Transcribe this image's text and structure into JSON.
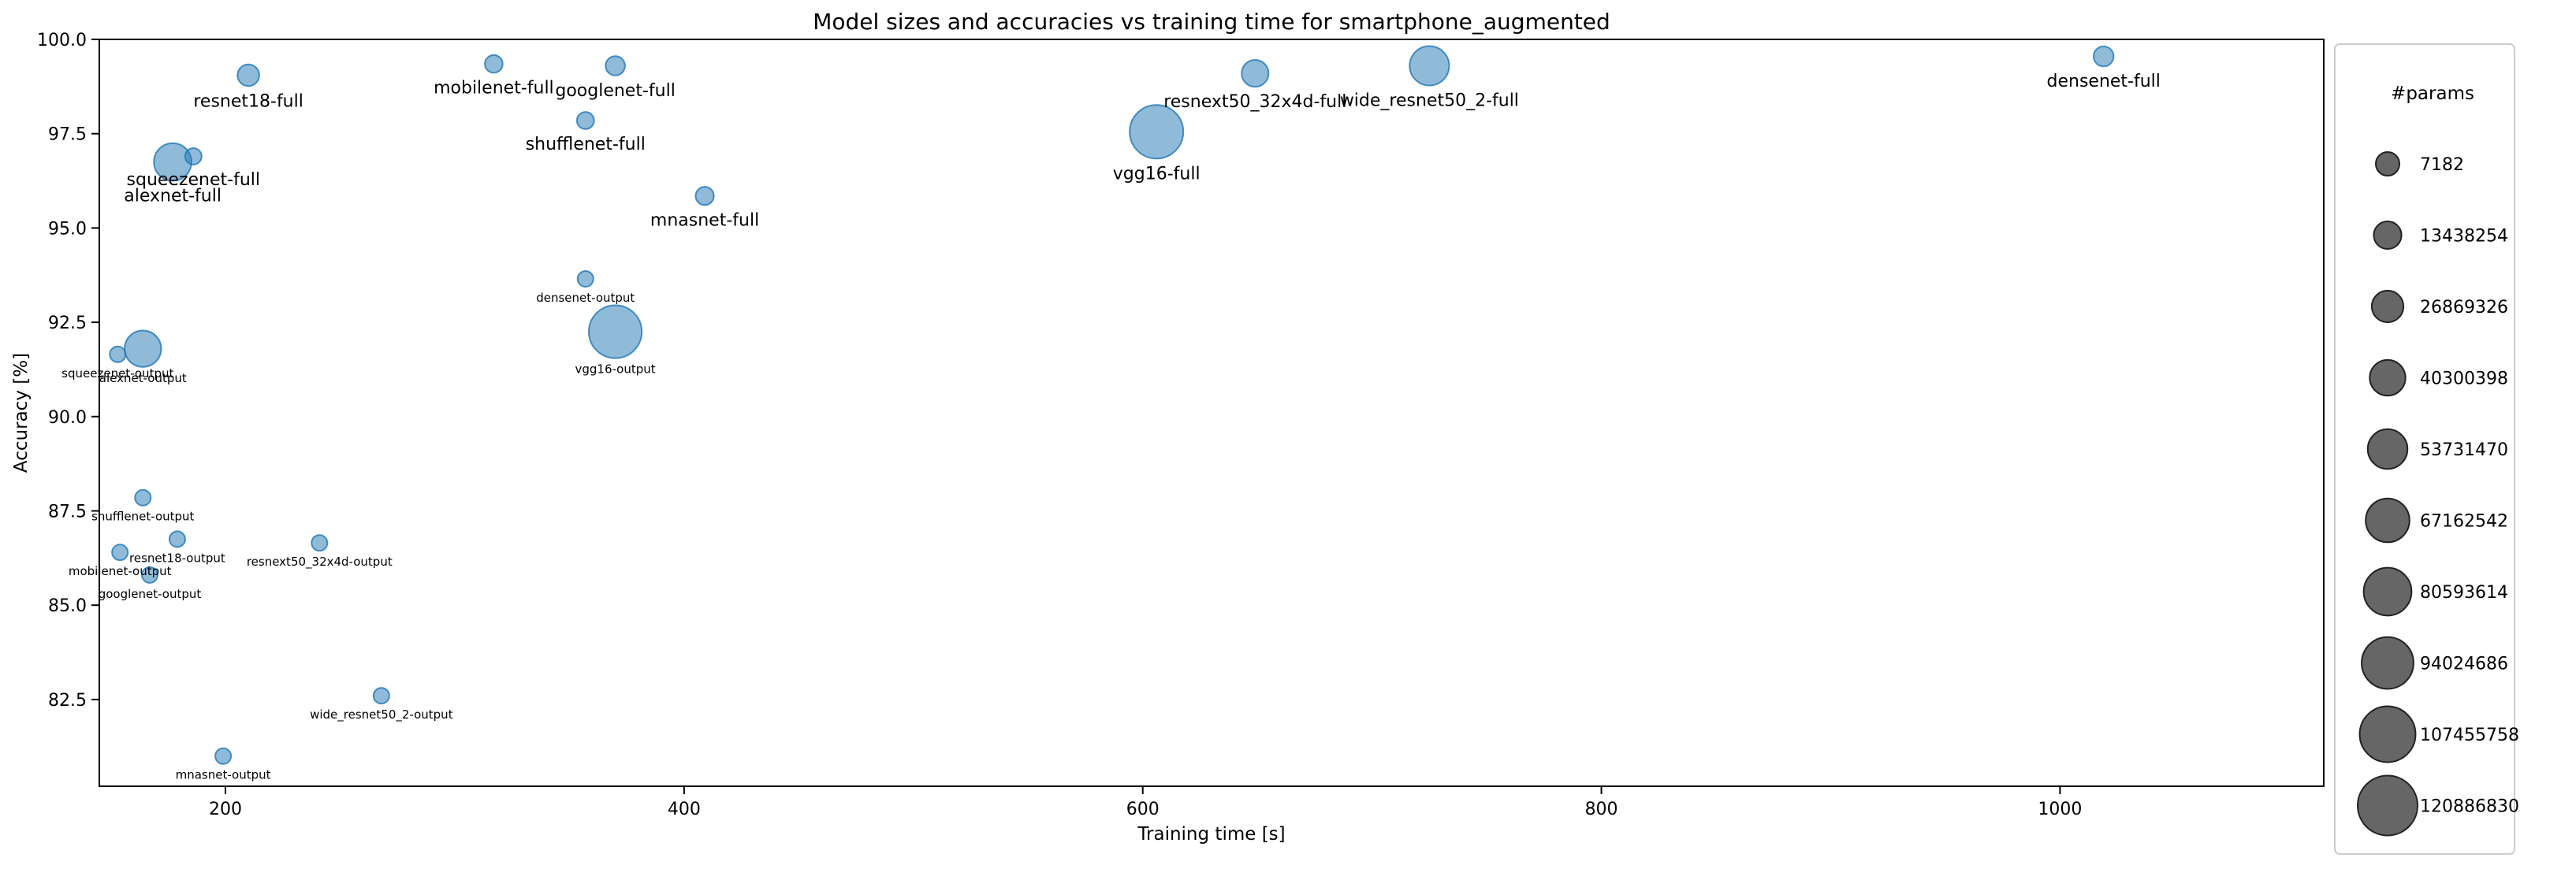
{
  "chart_data": {
    "type": "scatter",
    "title": "Model sizes and accuracies vs training time for smartphone_augmented",
    "xlabel": "Training time [s]",
    "ylabel": "Accuracy [%]",
    "xlim": [
      145,
      1115
    ],
    "ylim": [
      80.2,
      100.0
    ],
    "xticks": [
      200,
      400,
      600,
      800,
      1000
    ],
    "yticks": [
      82.5,
      85.0,
      87.5,
      90.0,
      92.5,
      95.0,
      97.5,
      100.0
    ],
    "xtick_labels": [
      "200",
      "400",
      "600",
      "800",
      "1000"
    ],
    "ytick_labels": [
      "82.5",
      "85.0",
      "87.5",
      "90.0",
      "92.5",
      "95.0",
      "97.5",
      "100.0"
    ],
    "point_color": "#1f77b4",
    "legend": {
      "title": "#params",
      "placement": "right, outside plot",
      "entries": [
        "7182",
        "13438254",
        "26869326",
        "40300398",
        "53731470",
        "67162542",
        "80593614",
        "94024686",
        "107455758",
        "120886830"
      ],
      "values": [
        7182,
        13438254,
        26869326,
        40300398,
        53731470,
        67162542,
        80593614,
        94024686,
        107455758,
        120886830
      ]
    },
    "points": [
      {
        "label": "resnet18-full",
        "x": 210,
        "y": 99.05,
        "params": 11700000
      },
      {
        "label": "mobilenet-full",
        "x": 317,
        "y": 99.35,
        "params": 3500000
      },
      {
        "label": "googlenet-full",
        "x": 370,
        "y": 99.3,
        "params": 6600000
      },
      {
        "label": "resnext50_32x4d-full",
        "x": 649,
        "y": 99.1,
        "params": 25000000
      },
      {
        "label": "wide_resnet50_2-full",
        "x": 725,
        "y": 99.3,
        "params": 68900000
      },
      {
        "label": "densenet-full",
        "x": 1019,
        "y": 99.55,
        "params": 8000000
      },
      {
        "label": "shufflenet-full",
        "x": 357,
        "y": 97.85,
        "params": 2300000
      },
      {
        "label": "squeezenet-full",
        "x": 186,
        "y": 96.9,
        "params": 1250000
      },
      {
        "label": "alexnet-full",
        "x": 177,
        "y": 96.75,
        "params": 61100000
      },
      {
        "label": "vgg16-full",
        "x": 606,
        "y": 97.55,
        "params": 138000000
      },
      {
        "label": "mnasnet-full",
        "x": 409,
        "y": 95.85,
        "params": 4400000
      },
      {
        "label": "densenet-output",
        "x": 357,
        "y": 93.65,
        "params": 7182
      },
      {
        "label": "vgg16-output",
        "x": 370,
        "y": 92.25,
        "params": 134300000
      },
      {
        "label": "squeezenet-output",
        "x": 153,
        "y": 91.65,
        "params": 7182
      },
      {
        "label": "alexnet-output",
        "x": 164,
        "y": 91.8,
        "params": 57000000
      },
      {
        "label": "shufflenet-output",
        "x": 164,
        "y": 87.85,
        "params": 7182
      },
      {
        "label": "resnet18-output",
        "x": 179,
        "y": 86.75,
        "params": 7182
      },
      {
        "label": "mobilenet-output",
        "x": 154,
        "y": 86.4,
        "params": 7182
      },
      {
        "label": "googlenet-output",
        "x": 167,
        "y": 85.8,
        "params": 7182
      },
      {
        "label": "resnext50_32x4d-output",
        "x": 241,
        "y": 86.65,
        "params": 7182
      },
      {
        "label": "wide_resnet50_2-output",
        "x": 268,
        "y": 82.6,
        "params": 7182
      },
      {
        "label": "mnasnet-output",
        "x": 199,
        "y": 81.0,
        "params": 7182
      }
    ]
  }
}
